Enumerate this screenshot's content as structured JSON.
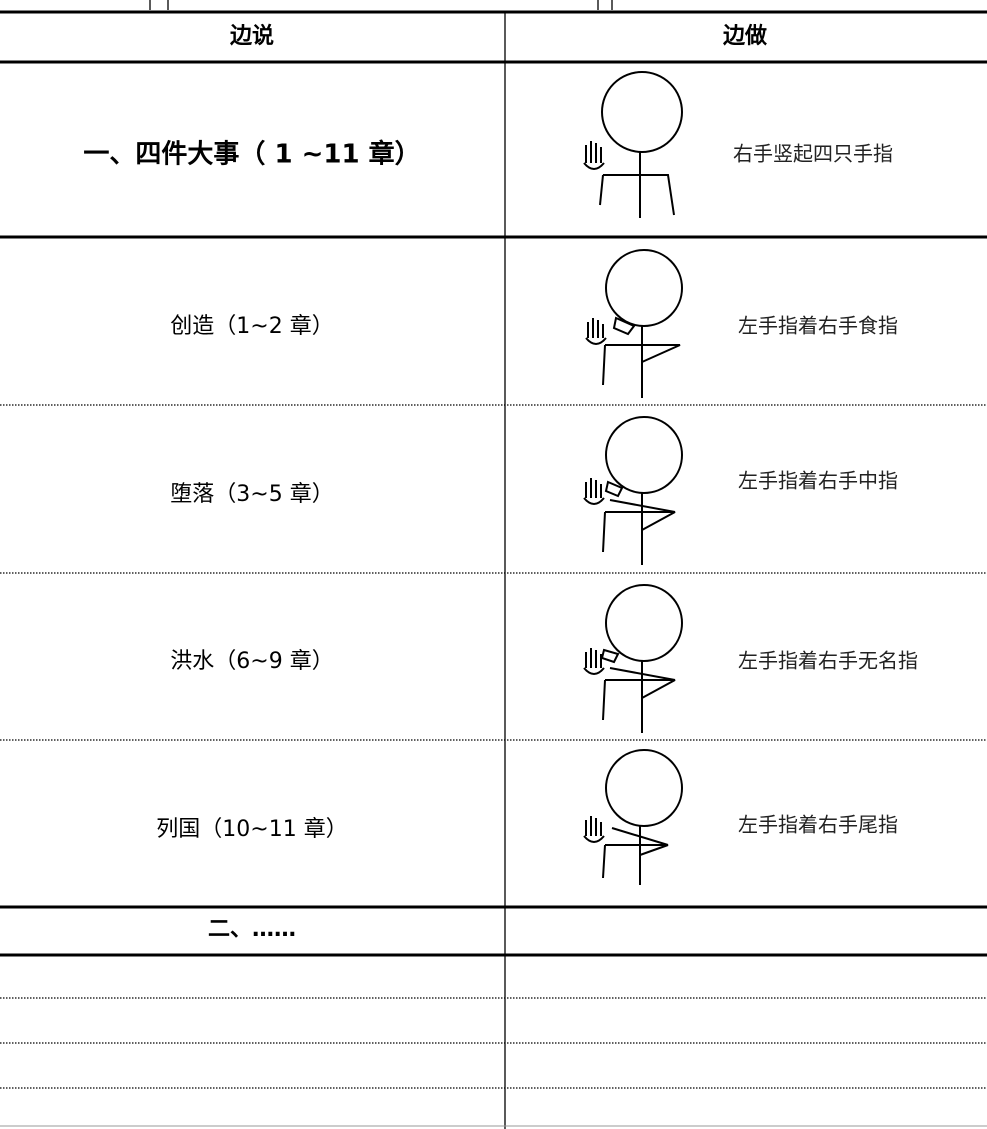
{
  "table": {
    "header": [
      "边说",
      "边做"
    ],
    "rows": [
      {
        "say": "一、四件大事（ 1 ~11 章）",
        "do": "右手竖起四只手指"
      },
      {
        "say": "创造（1~2 章）",
        "do": "左手指着右手食指"
      },
      {
        "say": "堕落（3~5 章）",
        "do": "左手指着右手中指"
      },
      {
        "say": "洪水（6~9 章）",
        "do": "左手指着右手无名指"
      },
      {
        "say": "列国（10~11 章）",
        "do": "左手指着右手尾指"
      },
      {
        "say": "二、……"
      }
    ]
  }
}
